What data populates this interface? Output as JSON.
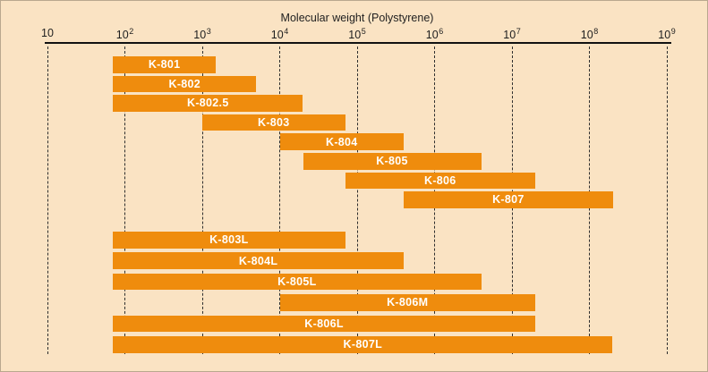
{
  "colors": {
    "background": "#FAE3C3",
    "bar": "#EF8C0D",
    "bar_text": "#FFFFFF",
    "axis": "#111111",
    "grid": "#2E2E2E"
  },
  "chart_data": {
    "type": "bar",
    "subtype": "horizontal-range-bars",
    "title": "Molecular weight (Polystyrene)",
    "x_axis": {
      "scale": "log10",
      "min": 10,
      "max": 1000000000,
      "tick_base": "10",
      "tick_exponents": [
        1,
        2,
        3,
        4,
        5,
        6,
        7,
        8,
        9
      ],
      "tick_labels": [
        "10",
        "10^2",
        "10^3",
        "10^4",
        "10^5",
        "10^6",
        "10^7",
        "10^8",
        "10^9"
      ],
      "grid": "dashed-vertical"
    },
    "legend": "none",
    "groups": [
      {
        "name": "analytical-columns",
        "bars": [
          {
            "label": "K-801",
            "min": 70,
            "max": 1500
          },
          {
            "label": "K-802",
            "min": 70,
            "max": 5000
          },
          {
            "label": "K-802.5",
            "min": 70,
            "max": 20000
          },
          {
            "label": "K-803",
            "min": 1000,
            "max": 70000
          },
          {
            "label": "K-804",
            "min": 10000,
            "max": 400000
          },
          {
            "label": "K-805",
            "min": 20000,
            "max": 4000000
          },
          {
            "label": "K-806",
            "min": 70000,
            "max": 20000000
          },
          {
            "label": "K-807",
            "min": 400000,
            "max": 200000000
          }
        ]
      },
      {
        "name": "linear-columns",
        "bars": [
          {
            "label": "K-803L",
            "min": 70,
            "max": 70000
          },
          {
            "label": "K-804L",
            "min": 70,
            "max": 400000
          },
          {
            "label": "K-805L",
            "min": 70,
            "max": 4000000
          },
          {
            "label": "K-806M",
            "min": 10000,
            "max": 20000000
          },
          {
            "label": "K-806L",
            "min": 70,
            "max": 20000000
          },
          {
            "label": "K-807L",
            "min": 70,
            "max": 200000000
          }
        ]
      }
    ]
  }
}
